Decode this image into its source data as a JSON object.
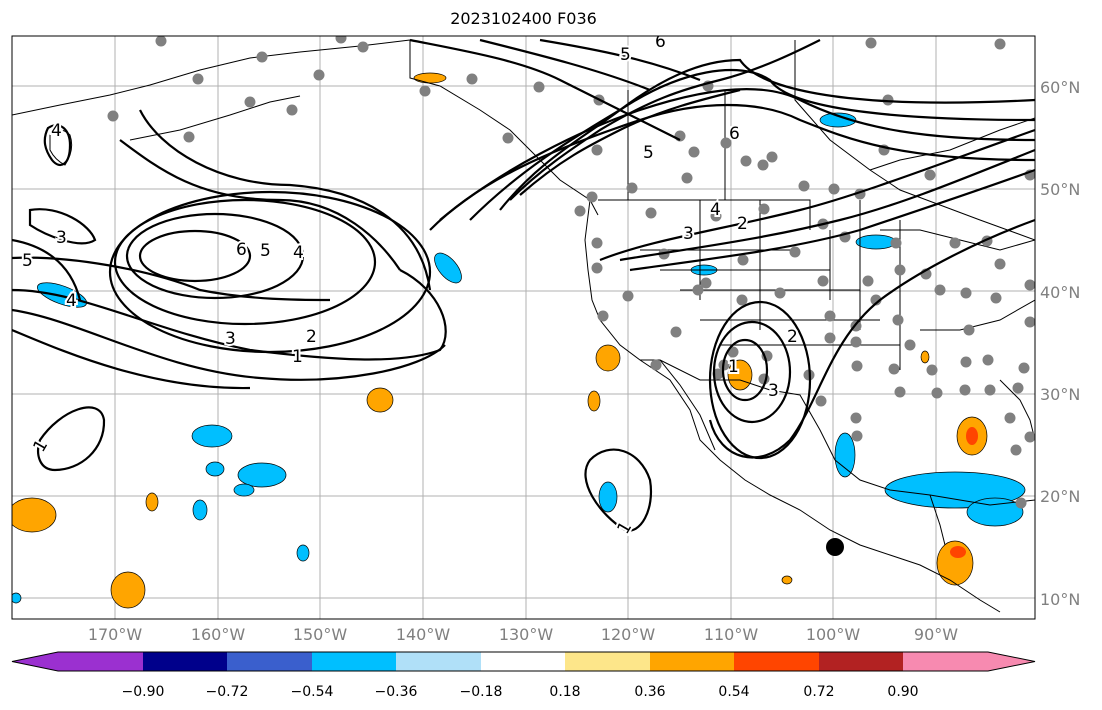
{
  "title": "2023102400 F036",
  "lon_labels": [
    "170°W",
    "160°W",
    "150°W",
    "140°W",
    "130°W",
    "120°W",
    "110°W",
    "100°W",
    "90°W"
  ],
  "lat_labels": [
    "60°N",
    "50°N",
    "40°N",
    "30°N",
    "20°N",
    "10°N"
  ],
  "colorbar": {
    "tick_labels": [
      "−0.90",
      "−0.72",
      "−0.54",
      "−0.36",
      "−0.18",
      "0.18",
      "0.36",
      "0.54",
      "0.72",
      "0.90"
    ],
    "colors": [
      "#9b30d0",
      "#00008b",
      "#3a5fcd",
      "#00bfff",
      "#b0e0f8",
      "#ffffff",
      "#fde68a",
      "#ffa500",
      "#ff4500",
      "#b22222",
      "#f78ab0"
    ]
  },
  "contour_labels": [
    "4",
    "3",
    "5",
    "4",
    "6",
    "5",
    "4",
    "3",
    "2",
    "1",
    "1",
    "1",
    "5",
    "6",
    "6",
    "5",
    "4",
    "3",
    "2",
    "2",
    "3",
    "1"
  ]
}
